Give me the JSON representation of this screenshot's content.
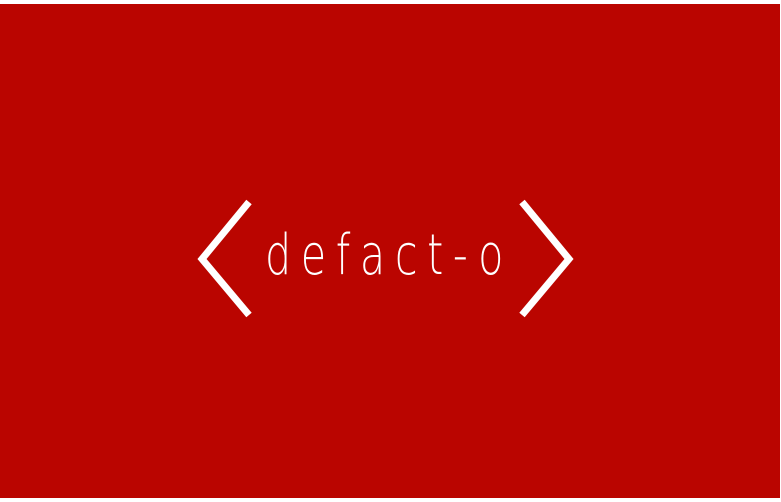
{
  "brand": {
    "wordmark": "defact-o",
    "background_color": "#BA0500",
    "foreground_color": "#FFFFFF"
  },
  "icons": {
    "left": "left-angle-bracket-icon",
    "right": "right-angle-bracket-icon"
  }
}
